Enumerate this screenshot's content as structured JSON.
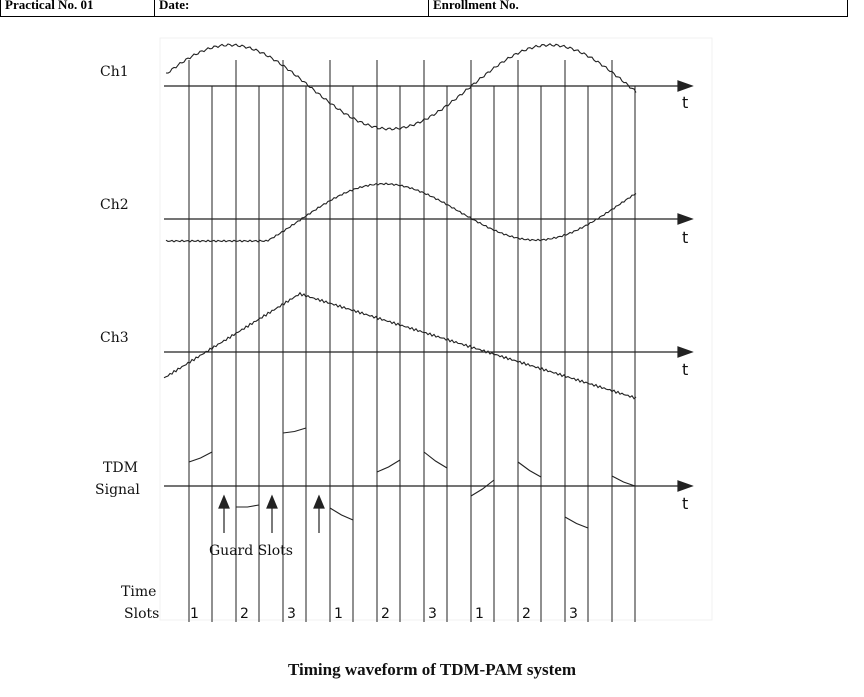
{
  "header": {
    "cells": [
      "Practical No. 01",
      "Date:",
      "Enrollment No."
    ]
  },
  "diagram": {
    "channels": [
      {
        "label": "Ch1",
        "axis_label": "t"
      },
      {
        "label": "Ch2",
        "axis_label": "t"
      },
      {
        "label": "Ch3",
        "axis_label": "t"
      },
      {
        "label": "TDM Signal",
        "label_line1": "TDM",
        "label_line2": "Signal",
        "axis_label": "t"
      }
    ],
    "guard_slots_label": "Guard Slots",
    "time_slots_label_line1": "Time",
    "time_slots_label_line2": "Slots",
    "slot_numbers": [
      "1",
      "2",
      "3",
      "1",
      "2",
      "3",
      "1",
      "2",
      "3"
    ]
  },
  "caption": "Timing waveform of TDM-PAM system"
}
